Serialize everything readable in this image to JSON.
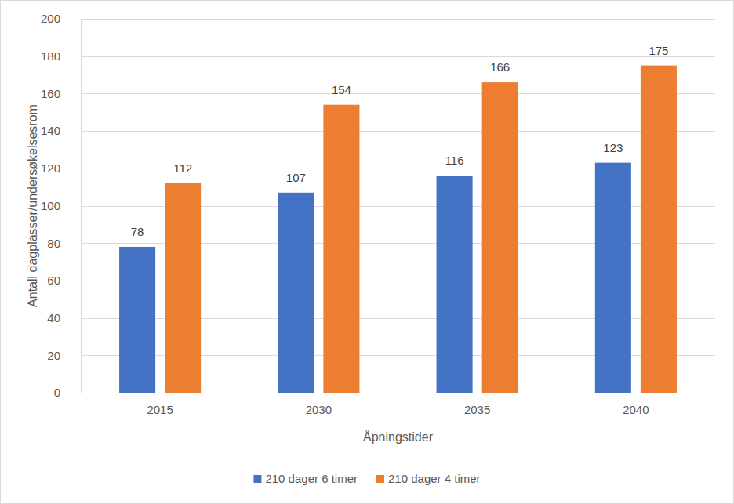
{
  "chart_data": {
    "type": "bar",
    "x_label": "Åpningstider",
    "y_label": "Antall dagplasser/undersøkelsesrom",
    "categories": [
      "2015",
      "2030",
      "2035",
      "2040"
    ],
    "series": [
      {
        "name": "210 dager 6 timer",
        "color": "#4472c4",
        "values": [
          78,
          107,
          116,
          123
        ]
      },
      {
        "name": "210 dager 4 timer",
        "color": "#ed7d31",
        "values": [
          112,
          154,
          166,
          175
        ]
      }
    ],
    "ylim": [
      0,
      200
    ],
    "yticks": [
      0,
      20,
      40,
      60,
      80,
      100,
      120,
      140,
      160,
      180,
      200
    ],
    "grid": true,
    "data_labels": true,
    "legend": "bottom"
  }
}
